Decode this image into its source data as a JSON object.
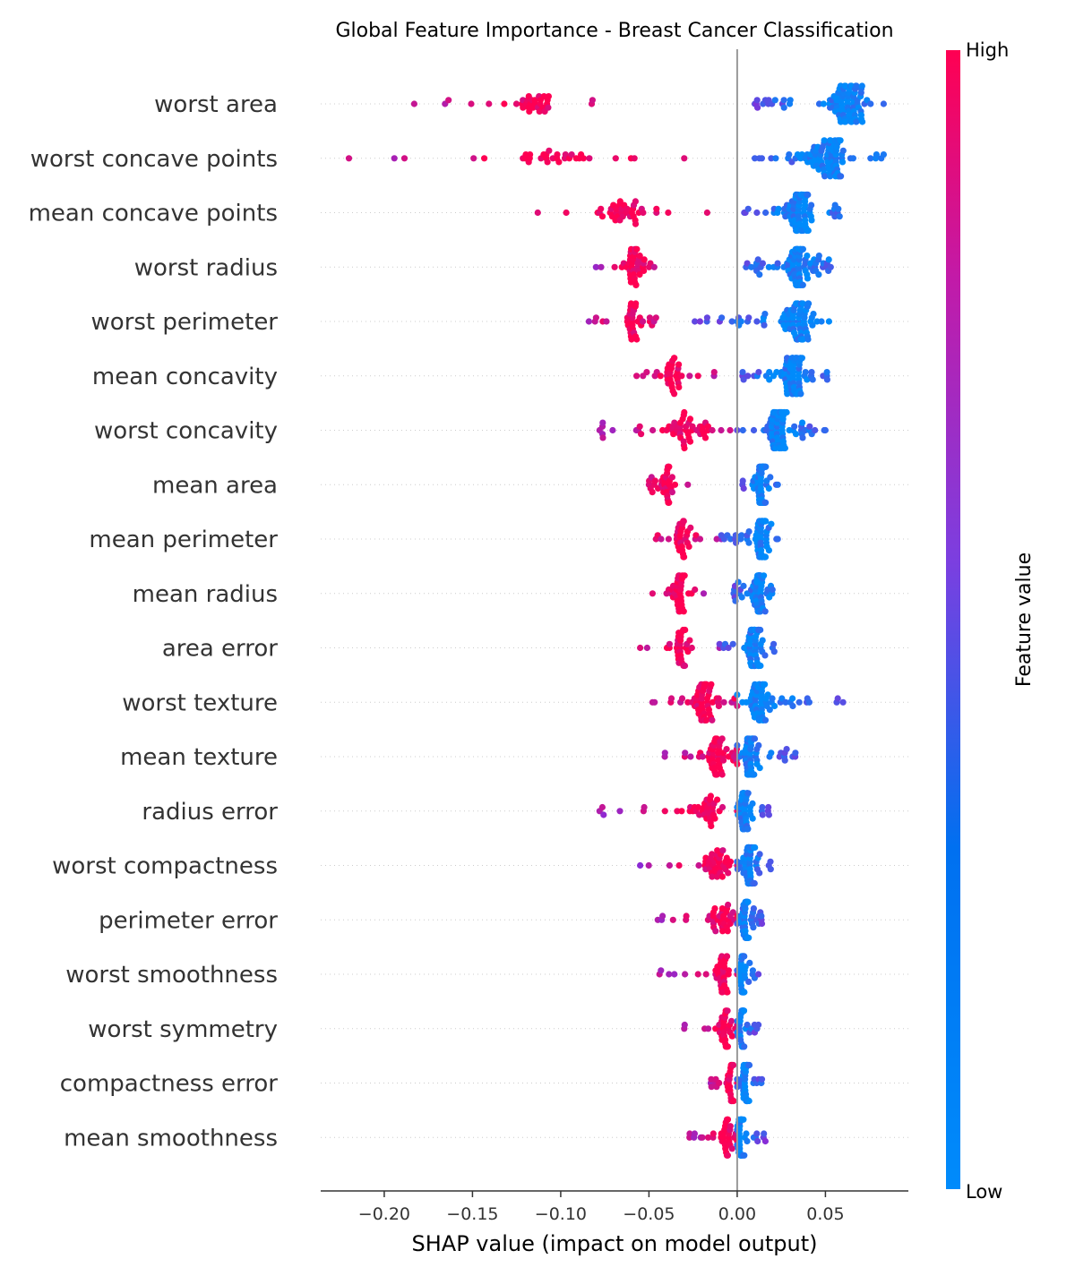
{
  "chart_data": {
    "type": "scatter",
    "subtype": "shap-beeswarm",
    "title": "Global Feature Importance - Breast Cancer Classification",
    "xlabel": "SHAP value (impact on model output)",
    "xlim": [
      -0.236,
      0.097
    ],
    "xticks": [
      -0.2,
      -0.15,
      -0.1,
      -0.05,
      0.0,
      0.05
    ],
    "xtick_labels": [
      "−0.20",
      "−0.15",
      "−0.10",
      "−0.05",
      "0.00",
      "0.05"
    ],
    "zero_line": 0,
    "colorbar": {
      "title": "Feature value",
      "high_label": "High",
      "low_label": "Low",
      "high_color": "#ff0052",
      "mid_color": "#8a2bd6",
      "low_color": "#008bfb"
    },
    "features": [
      {
        "name": "worst area",
        "neg_min": -0.183,
        "neg_max": -0.082,
        "neg_center": -0.115,
        "pos_min": 0.01,
        "pos_max": 0.083,
        "pos_center": 0.062,
        "neg_count": 34,
        "pos_count": 95,
        "spread": 14
      },
      {
        "name": "worst concave points",
        "neg_min": -0.22,
        "neg_max": -0.03,
        "neg_center": -0.095,
        "pos_min": 0.01,
        "pos_max": 0.083,
        "pos_center": 0.052,
        "neg_count": 34,
        "pos_count": 90,
        "spread": 14
      },
      {
        "name": "mean concave points",
        "neg_min": -0.113,
        "neg_max": -0.017,
        "neg_center": -0.066,
        "pos_min": 0.004,
        "pos_max": 0.058,
        "pos_center": 0.036,
        "neg_count": 38,
        "pos_count": 88,
        "spread": 14
      },
      {
        "name": "worst radius",
        "neg_min": -0.08,
        "neg_max": -0.047,
        "neg_center": -0.058,
        "pos_min": 0.005,
        "pos_max": 0.053,
        "pos_center": 0.034,
        "neg_count": 42,
        "pos_count": 90,
        "spread": 14
      },
      {
        "name": "worst perimeter",
        "neg_min": -0.084,
        "neg_max": -0.046,
        "neg_center": -0.06,
        "pos_min": -0.024,
        "pos_max": 0.052,
        "pos_center": 0.035,
        "neg_count": 36,
        "pos_count": 82,
        "spread": 14
      },
      {
        "name": "mean concavity",
        "neg_min": -0.057,
        "neg_max": -0.013,
        "neg_center": -0.037,
        "pos_min": 0.003,
        "pos_max": 0.051,
        "pos_center": 0.032,
        "neg_count": 36,
        "pos_count": 84,
        "spread": 14
      },
      {
        "name": "worst concavity",
        "neg_min": -0.078,
        "neg_max": -0.004,
        "neg_center": -0.028,
        "pos_min": 0.0,
        "pos_max": 0.05,
        "pos_center": 0.024,
        "neg_count": 54,
        "pos_count": 78,
        "spread": 14
      },
      {
        "name": "mean area",
        "neg_min": -0.05,
        "neg_max": -0.028,
        "neg_center": -0.04,
        "pos_min": 0.003,
        "pos_max": 0.023,
        "pos_center": 0.014,
        "neg_count": 36,
        "pos_count": 70,
        "spread": 14
      },
      {
        "name": "mean perimeter",
        "neg_min": -0.046,
        "neg_max": -0.009,
        "neg_center": -0.031,
        "pos_min": -0.009,
        "pos_max": 0.023,
        "pos_center": 0.014,
        "neg_count": 38,
        "pos_count": 76,
        "spread": 14
      },
      {
        "name": "mean radius",
        "neg_min": -0.048,
        "neg_max": -0.019,
        "neg_center": -0.033,
        "pos_min": -0.002,
        "pos_max": 0.02,
        "pos_center": 0.012,
        "neg_count": 36,
        "pos_count": 70,
        "spread": 14
      },
      {
        "name": "area error",
        "neg_min": -0.055,
        "neg_max": -0.01,
        "neg_center": -0.032,
        "pos_min": -0.01,
        "pos_max": 0.021,
        "pos_center": 0.01,
        "neg_count": 34,
        "pos_count": 76,
        "spread": 14
      },
      {
        "name": "worst texture",
        "neg_min": -0.048,
        "neg_max": 0.0,
        "neg_center": -0.018,
        "pos_min": 0.0,
        "pos_max": 0.06,
        "pos_center": 0.012,
        "neg_count": 60,
        "pos_count": 64,
        "spread": 14
      },
      {
        "name": "mean texture",
        "neg_min": -0.041,
        "neg_max": 0.0,
        "neg_center": -0.012,
        "pos_min": 0.0,
        "pos_max": 0.033,
        "pos_center": 0.008,
        "neg_count": 56,
        "pos_count": 60,
        "spread": 14
      },
      {
        "name": "radius error",
        "neg_min": -0.078,
        "neg_max": 0.0,
        "neg_center": -0.018,
        "pos_min": 0.0,
        "pos_max": 0.018,
        "pos_center": 0.004,
        "neg_count": 40,
        "pos_count": 56,
        "spread": 14
      },
      {
        "name": "worst compactness",
        "neg_min": -0.055,
        "neg_max": 0.0,
        "neg_center": -0.012,
        "pos_min": 0.0,
        "pos_max": 0.019,
        "pos_center": 0.007,
        "neg_count": 40,
        "pos_count": 66,
        "spread": 14
      },
      {
        "name": "perimeter error",
        "neg_min": -0.045,
        "neg_max": 0.0,
        "neg_center": -0.008,
        "pos_min": 0.0,
        "pos_max": 0.014,
        "pos_center": 0.005,
        "neg_count": 36,
        "pos_count": 56,
        "spread": 14
      },
      {
        "name": "worst smoothness",
        "neg_min": -0.044,
        "neg_max": 0.0,
        "neg_center": -0.008,
        "pos_min": 0.0,
        "pos_max": 0.012,
        "pos_center": 0.003,
        "neg_count": 40,
        "pos_count": 46,
        "spread": 14
      },
      {
        "name": "worst symmetry",
        "neg_min": -0.03,
        "neg_max": 0.0,
        "neg_center": -0.006,
        "pos_min": 0.0,
        "pos_max": 0.012,
        "pos_center": 0.003,
        "neg_count": 36,
        "pos_count": 46,
        "spread": 14
      },
      {
        "name": "compactness error",
        "neg_min": -0.015,
        "neg_max": 0.0,
        "neg_center": -0.004,
        "pos_min": 0.0,
        "pos_max": 0.014,
        "pos_center": 0.005,
        "neg_count": 34,
        "pos_count": 44,
        "spread": 14
      },
      {
        "name": "mean smoothness",
        "neg_min": -0.027,
        "neg_max": 0.0,
        "neg_center": -0.006,
        "pos_min": 0.0,
        "pos_max": 0.016,
        "pos_center": 0.002,
        "neg_count": 36,
        "pos_count": 44,
        "spread": 14
      }
    ]
  }
}
